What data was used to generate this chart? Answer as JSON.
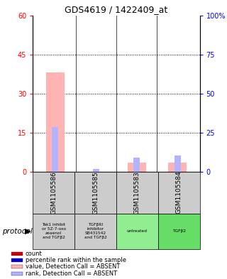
{
  "title": "GDS4619 / 1422409_at",
  "samples": [
    "GSM1105586",
    "GSM1105585",
    "GSM1105583",
    "GSM1105584"
  ],
  "protocols": [
    "Tak1 inhibit\nor 5Z-7-oxo\nzeaenol\nand TGFβ2",
    "TGFβRI\ninhibitor\nSB431542\nand TGFβ2",
    "untreated",
    "TGFβ2"
  ],
  "protocol_bg_colors": [
    "#cccccc",
    "#cccccc",
    "#90EE90",
    "#66DD66"
  ],
  "value_absent": [
    38.0,
    0.0,
    3.5,
    3.5
  ],
  "rank_absent_pct": [
    28.5,
    1.5,
    9.0,
    10.5
  ],
  "ylim_left": [
    0,
    60
  ],
  "ylim_right": [
    0,
    100
  ],
  "yticks_left": [
    0,
    15,
    30,
    45,
    60
  ],
  "yticks_right": [
    0,
    25,
    50,
    75,
    100
  ],
  "ytick_labels_right": [
    "0",
    "25",
    "50",
    "75",
    "100%"
  ],
  "left_color": "#FFB3B3",
  "right_color": "#B3B3FF",
  "bg_gray": "#CCCCCC",
  "legend_items": [
    {
      "color": "#CC0000",
      "label": "count"
    },
    {
      "color": "#0000CC",
      "label": "percentile rank within the sample"
    },
    {
      "color": "#FFB3B3",
      "label": "value, Detection Call = ABSENT"
    },
    {
      "color": "#B3B3FF",
      "label": "rank, Detection Call = ABSENT"
    }
  ]
}
